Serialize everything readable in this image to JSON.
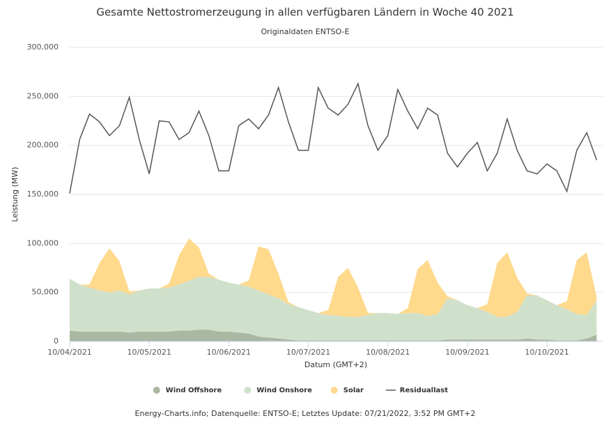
{
  "chart_data": {
    "type": "area",
    "title": "Gesamte Nettostromerzeugung in allen verfügbaren Ländern in Woche 40 2021",
    "subtitle": "Originaldaten ENTSO-E",
    "y_label": "Leistung (MW)",
    "x_label": "Datum (GMT+2)",
    "credits": "Energy-Charts.info; Datenquelle: ENTSO-E; Letztes Update: 07/21/2022, 3:52 PM GMT+2",
    "stacked": true,
    "grid": true,
    "legend": "bottom",
    "xlim": [
      0,
      6.7
    ],
    "xticks": [
      {
        "value": 0,
        "label": "10/04/2021"
      },
      {
        "value": 1,
        "label": "10/05/2021"
      },
      {
        "value": 2,
        "label": "10/06/2021"
      },
      {
        "value": 3,
        "label": "10/07/2021"
      },
      {
        "value": 4,
        "label": "10/08/2021"
      },
      {
        "value": 5,
        "label": "10/09/2021"
      },
      {
        "value": 6,
        "label": "10/10/2021"
      }
    ],
    "ylim": [
      0,
      300000
    ],
    "yticks": [
      0,
      {
        "value": 50000,
        "label": "50,000"
      },
      {
        "value": 100000,
        "label": "100,000"
      },
      {
        "value": 150000,
        "label": "150,000"
      },
      {
        "value": 200000,
        "label": "200,000"
      },
      {
        "value": 250000,
        "label": "250,000"
      },
      {
        "value": 300000,
        "label": "300,000"
      }
    ],
    "x": [
      0,
      0.125,
      0.25,
      0.375,
      0.5,
      0.625,
      0.75,
      0.875,
      1,
      1.125,
      1.25,
      1.375,
      1.5,
      1.625,
      1.75,
      1.875,
      2,
      2.125,
      2.25,
      2.375,
      2.5,
      2.625,
      2.75,
      2.875,
      3,
      3.125,
      3.25,
      3.375,
      3.5,
      3.625,
      3.75,
      3.875,
      4,
      4.125,
      4.25,
      4.375,
      4.5,
      4.625,
      4.75,
      4.875,
      5,
      5.125,
      5.25,
      5.375,
      5.5,
      5.625,
      5.75,
      5.875,
      6,
      6.125,
      6.25,
      6.375,
      6.5,
      6.625
    ],
    "series": [
      {
        "name": "Wind Offshore",
        "color": "#a9b8a1",
        "values": [
          11000,
          10000,
          10000,
          10000,
          10000,
          10000,
          9000,
          10000,
          10000,
          10000,
          10000,
          11000,
          11000,
          12000,
          12000,
          10000,
          10000,
          9000,
          8000,
          5000,
          4000,
          3000,
          2000,
          1000,
          1000,
          1000,
          1000,
          1000,
          1000,
          1000,
          1000,
          1000,
          1000,
          1000,
          1000,
          1000,
          1000,
          1000,
          2000,
          2000,
          2000,
          2000,
          2000,
          2000,
          2000,
          2000,
          3000,
          2000,
          2000,
          1000,
          1000,
          1000,
          3000,
          7000
        ]
      },
      {
        "name": "Wind Onshore",
        "color": "#d0e1cb",
        "values": [
          53000,
          48000,
          45000,
          42000,
          40000,
          42000,
          39000,
          42000,
          44000,
          44000,
          45000,
          47000,
          51000,
          54000,
          54000,
          53000,
          50000,
          49000,
          48000,
          47000,
          44000,
          41000,
          36000,
          34000,
          31000,
          28000,
          26000,
          25000,
          24000,
          24000,
          26000,
          28000,
          28000,
          27000,
          28000,
          28000,
          25000,
          27000,
          42000,
          40000,
          35000,
          32000,
          28000,
          23000,
          23000,
          28000,
          44000,
          45000,
          40000,
          36000,
          32000,
          27000,
          24000,
          35000
        ]
      },
      {
        "name": "Solar",
        "color": "#ffd98c",
        "values": [
          0,
          0,
          3000,
          28000,
          45000,
          30000,
          3000,
          0,
          0,
          0,
          4000,
          30000,
          43000,
          30000,
          3000,
          0,
          0,
          0,
          6000,
          45000,
          46000,
          25000,
          2000,
          0,
          0,
          0,
          5000,
          40000,
          50000,
          30000,
          2000,
          0,
          0,
          0,
          5000,
          45000,
          57000,
          32000,
          2000,
          0,
          0,
          0,
          8000,
          55000,
          66000,
          35000,
          2000,
          0,
          0,
          0,
          8000,
          55000,
          64000,
          3000
        ]
      },
      {
        "name": "Residuallast",
        "type": "line",
        "color": "#555555",
        "values": [
          151000,
          206000,
          232000,
          224000,
          210000,
          220000,
          249000,
          206000,
          171000,
          225000,
          224000,
          206000,
          213000,
          235000,
          210000,
          174000,
          174000,
          220000,
          227000,
          217000,
          231000,
          259000,
          224000,
          195000,
          195000,
          259000,
          238000,
          231000,
          242000,
          263000,
          220000,
          195000,
          210000,
          257000,
          235000,
          217000,
          238000,
          231000,
          192000,
          178000,
          192000,
          203000,
          174000,
          192000,
          227000,
          195000,
          174000,
          171000,
          181000,
          174000,
          153000,
          195000,
          213000,
          185000
        ]
      }
    ]
  }
}
